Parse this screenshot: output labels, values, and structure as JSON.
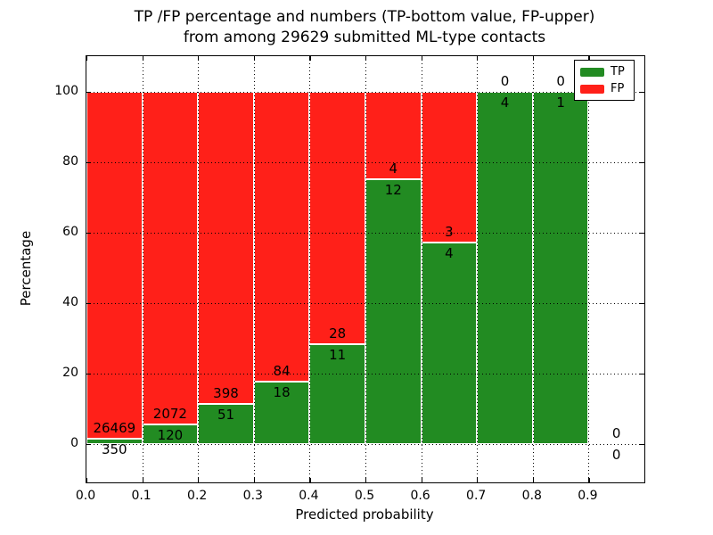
{
  "chart_data": {
    "type": "bar",
    "stacked": true,
    "title": "TP /FP percentage and numbers (TP-bottom value, FP-upper)",
    "subtitle": "from among 29629 submitted ML-type contacts",
    "xlabel": "Predicted probability",
    "ylabel": "Percentage",
    "total_submitted_contacts": 29629,
    "xlim": [
      0.0,
      1.0
    ],
    "ylim": [
      -11,
      110
    ],
    "xticks": [
      "0.0",
      "0.1",
      "0.2",
      "0.3",
      "0.4",
      "0.5",
      "0.6",
      "0.7",
      "0.8",
      "0.9"
    ],
    "yticks": [
      0,
      20,
      40,
      60,
      80,
      100
    ],
    "grid": "dotted",
    "colors": {
      "tp": "#228b22",
      "fp": "#ff2019",
      "bar_edge": "#ffffff",
      "grid": "#000000"
    },
    "legend": {
      "position": "upper-right",
      "entries": [
        {
          "label": "TP",
          "color": "#228b22"
        },
        {
          "label": "FP",
          "color": "#ff2019"
        }
      ]
    },
    "bins": [
      {
        "range": [
          0.0,
          0.1
        ],
        "tp": 350,
        "fp": 26469
      },
      {
        "range": [
          0.1,
          0.2
        ],
        "tp": 120,
        "fp": 2072
      },
      {
        "range": [
          0.2,
          0.3
        ],
        "tp": 51,
        "fp": 398
      },
      {
        "range": [
          0.3,
          0.4
        ],
        "tp": 18,
        "fp": 84
      },
      {
        "range": [
          0.4,
          0.5
        ],
        "tp": 11,
        "fp": 28
      },
      {
        "range": [
          0.5,
          0.6
        ],
        "tp": 12,
        "fp": 4
      },
      {
        "range": [
          0.6,
          0.7
        ],
        "tp": 4,
        "fp": 3
      },
      {
        "range": [
          0.7,
          0.8
        ],
        "tp": 4,
        "fp": 0
      },
      {
        "range": [
          0.8,
          0.9
        ],
        "tp": 1,
        "fp": 0
      },
      {
        "range": [
          0.9,
          1.0
        ],
        "tp": 0,
        "fp": 0
      }
    ]
  }
}
